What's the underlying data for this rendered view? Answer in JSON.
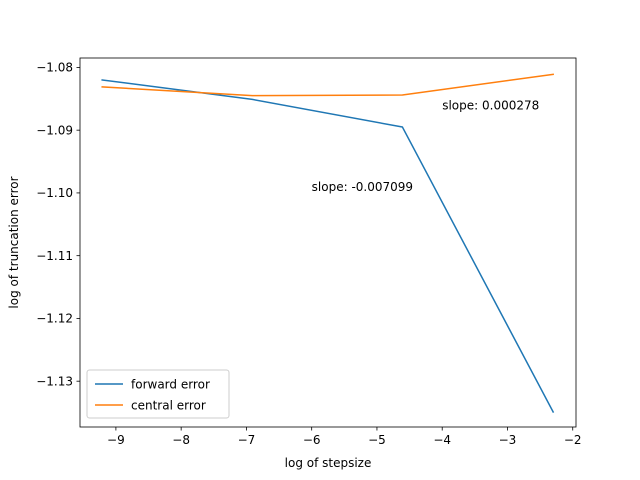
{
  "chart_data": {
    "type": "line",
    "title": "",
    "xlabel": "log of stepsize",
    "ylabel": "log of truncation error",
    "xlim": [
      -9.55,
      -1.95
    ],
    "ylim": [
      -1.1373,
      -1.0785
    ],
    "xticks": [
      -9,
      -8,
      -7,
      -6,
      -5,
      -4,
      -3,
      -2
    ],
    "yticks": [
      -1.08,
      -1.09,
      -1.1,
      -1.11,
      -1.12,
      -1.13
    ],
    "xtick_labels": [
      "−9",
      "−8",
      "−7",
      "−6",
      "−5",
      "−4",
      "−3",
      "−2"
    ],
    "ytick_labels": [
      "−1.08",
      "−1.09",
      "−1.10",
      "−1.11",
      "−1.12",
      "−1.13"
    ],
    "grid": false,
    "legend_position": "lower-left",
    "series": [
      {
        "name": "forward error",
        "color": "#1f77b4",
        "x": [
          -9.21,
          -6.91,
          -4.61,
          -2.3
        ],
        "y": [
          -1.082,
          -1.0851,
          -1.0895,
          -1.1349
        ]
      },
      {
        "name": "central error",
        "color": "#ff7f0e",
        "x": [
          -9.21,
          -6.91,
          -4.61,
          -2.3
        ],
        "y": [
          -1.0831,
          -1.0845,
          -1.0844,
          -1.0811
        ]
      }
    ],
    "annotations": [
      {
        "text": "slope: -0.007099",
        "x": -6.0,
        "y": -1.0997
      },
      {
        "text": "slope: 0.000278",
        "x": -4.0,
        "y": -1.0867
      }
    ]
  }
}
